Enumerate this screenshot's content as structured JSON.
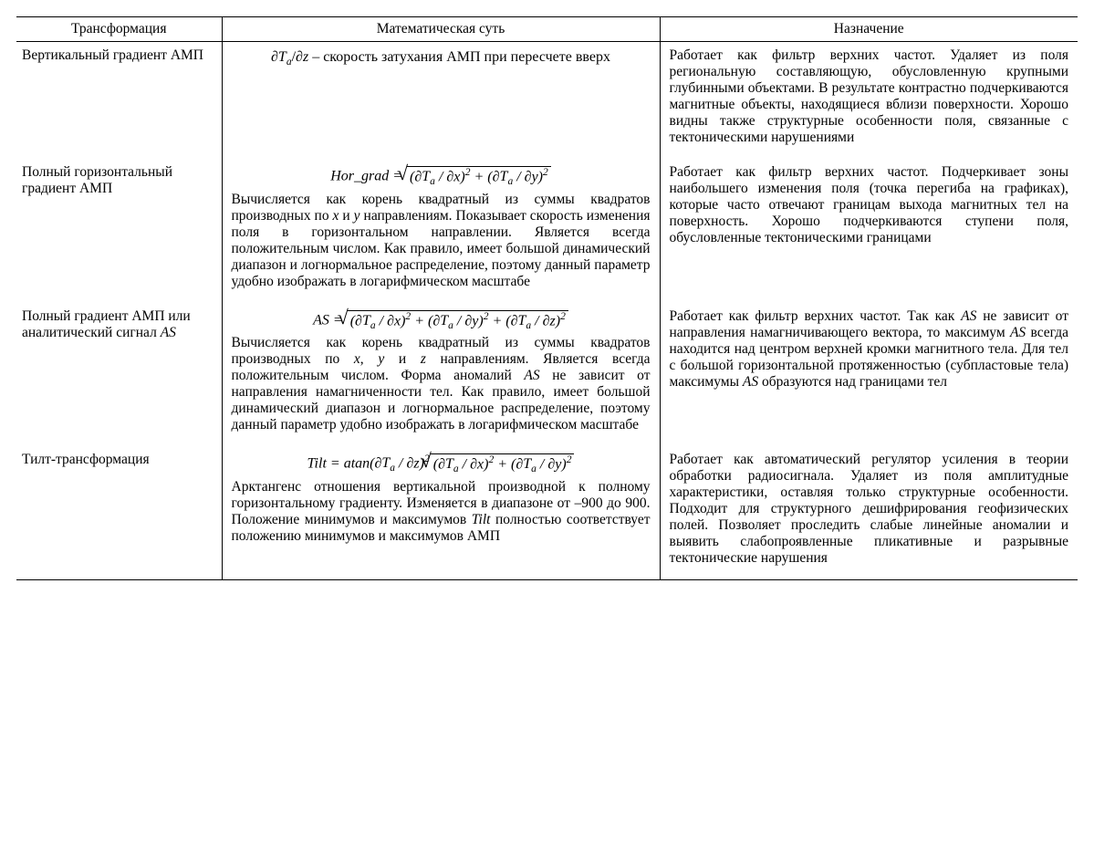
{
  "table": {
    "headers": {
      "col1": "Трансформация",
      "col2": "Математическая суть",
      "col3": "Назначение"
    },
    "rows": [
      {
        "name": "Вертикальный градиент АМП",
        "formula_html": "<span class='it'>∂T<sub>a</sub></span>/<span class='it'>∂z</span> – скорость затухания АМП при пересчете вверх",
        "desc": "",
        "purpose": "Работает как фильтр верхних частот. Удаляет из поля региональную составляющую, обусловленную крупными глубинными объектами. В результате контрастно подчеркиваются магнитные объекты, находящиеся вблизи поверхности. Хорошо видны также структурные особенности поля, связанные с тектоническими нарушениями"
      },
      {
        "name": "Полный горизонтальный градиент АМП",
        "formula_html": "<span class='it'>Hor</span>_<span class='it'>grad</span> = <span class='sqrt-wrap'><span class='surd'>√</span><span class='sqrt-bar'>(∂<span class='it'>T<sub>a</sub></span> / ∂<span class='it'>x</span>)<sup>2</sup> + (∂<span class='it'>T<sub>a</sub></span> / ∂<span class='it'>y</span>)<sup>2</sup></span></span>",
        "desc": "Вычисляется как корень квадратный из суммы квадратов производных по <span class='it'>x</span> и <span class='it'>y</span> направлениям. Показывает скорость изменения поля в горизонтальном направлении. Является всегда положительным числом. Как правило, имеет большой динамический диапазон и логнормальное распределение, поэтому данный параметр удобно изображать в логарифмическом масштабе",
        "purpose": "Работает как фильтр верхних частот. Подчеркивает зоны наибольшего изменения поля (точка перегиба на графиках), которые часто отвечают границам выхода магнитных тел на поверхность. Хорошо подчеркиваются ступени поля, обусловленные тектоническими границами"
      },
      {
        "name": "Полный градиент АМП или аналитический сигнал <span class='it'>AS</span>",
        "formula_html": "<span class='it'>AS</span> = <span class='sqrt-wrap'><span class='surd'>√</span><span class='sqrt-bar'>(∂<span class='it'>T<sub>a</sub></span> / ∂<span class='it'>x</span>)<sup>2</sup> + (∂<span class='it'>T<sub>a</sub></span> / ∂<span class='it'>y</span>)<sup>2</sup> + (∂<span class='it'>T<sub>a</sub></span> / ∂<span class='it'>z</span>)<sup>2</sup></span></span>",
        "desc": "Вычисляется как корень квадратный из суммы квадратов производных по <span class='it'>x</span>, <span class='it'>y</span> и <span class='it'>z</span> направлениям. Является всегда положительным числом. Форма аномалий <span class='it'>AS</span> не зависит от направления намагниченности тел. Как правило, имеет большой динамический диапазон и логнормальное распределение, поэтому данный параметр удобно изображать в логарифмическом масштабе",
        "purpose": "Работает как фильтр верхних частот. Так как <span class='it'>AS</span> не зависит от направления намагничивающего вектора, то максимум <span class='it'>AS</span> всегда находится над центром верхней кромки магнитного тела. Для тел с большой горизонтальной протяженностью (субпластовые тела) максимумы <span class='it'>AS</span> образуются над границами тел"
      },
      {
        "name": "Тилт-трансформация",
        "formula_html": "<span class='it'>Tilt</span> = atan(∂<span class='it'>T<sub>a</sub></span> / ∂<span class='it'>z</span>)<sup>2</sup><span class='sqrt-wrap'><span class='surd'>√</span><span class='sqrt-bar'>(∂<span class='it'>T<sub>a</sub></span> / ∂<span class='it'>x</span>)<sup>2</sup> + (∂<span class='it'>T<sub>a</sub></span> / ∂<span class='it'>y</span>)<sup>2</sup></span></span>",
        "desc": "Арктангенс отношения вертикальной производной к полному горизонтальному градиенту. Изменяется в диапазоне от –900 до 900. Положение минимумов и максимумов <span class='it'>Tilt</span> полностью соответствует положению минимумов и максимумов АМП",
        "purpose": "Работает как автоматический регулятор усиления в теории обработки радиосигнала. Удаляет из поля амплитудные характеристики, оставляя только структурные особенности. Подходит для структурного дешифрирования геофизических полей. Позволяет проследить слабые линейные аномалии и выявить слабопроявленные пликативные и разрывные тектонические нарушения"
      }
    ]
  }
}
